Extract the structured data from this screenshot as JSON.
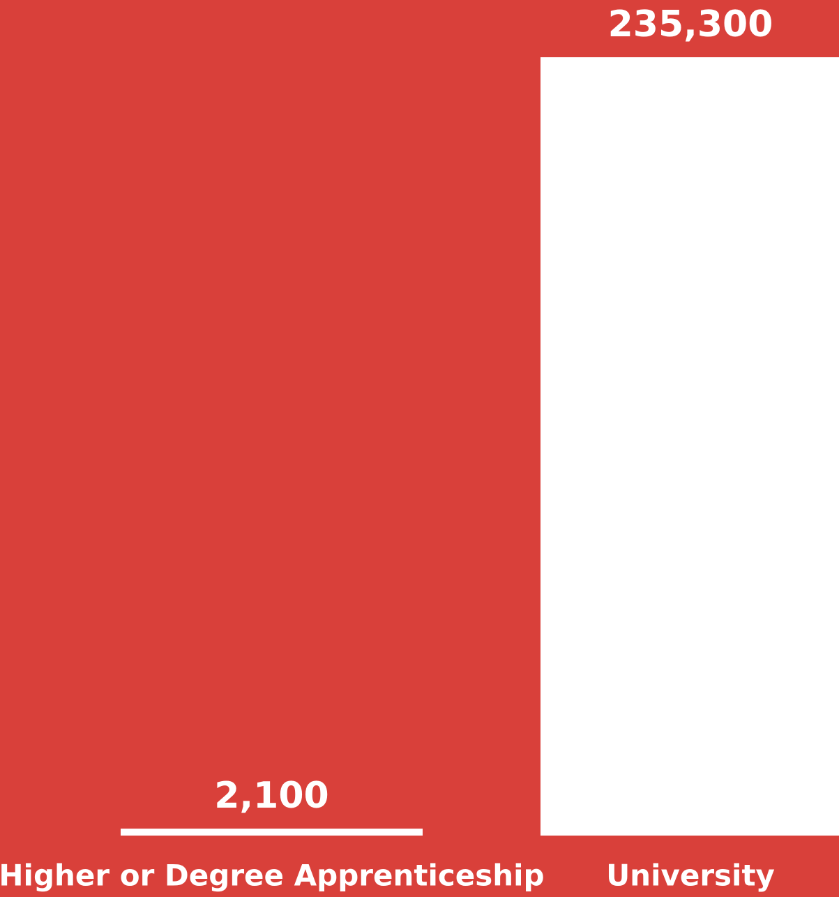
{
  "chart_data": {
    "type": "bar",
    "categories": [
      "Higher or Degree Apprenticeship",
      "University"
    ],
    "values": [
      2100,
      235300
    ],
    "value_labels": [
      "2,100",
      "235,300"
    ],
    "color": "#ffffff",
    "background": "#d9403a",
    "ylim": [
      0,
      235300
    ]
  }
}
